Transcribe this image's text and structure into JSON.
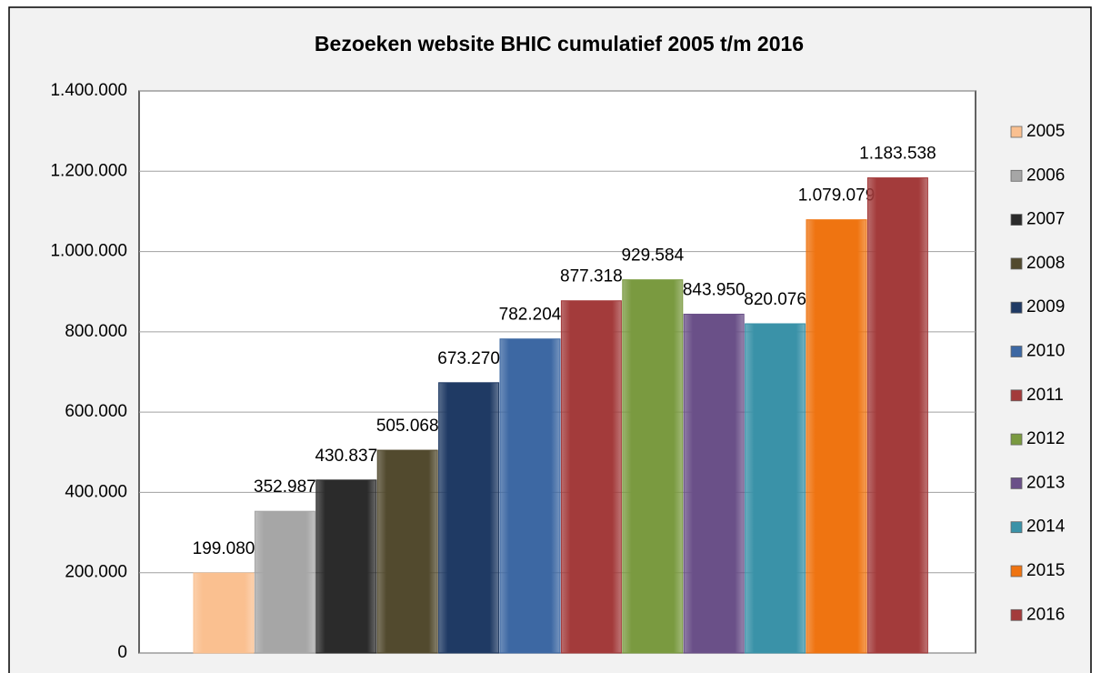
{
  "chart_data": {
    "type": "bar",
    "title": "Bezoeken website BHIC cumulatief 2005 t/m 2016",
    "series": [
      {
        "name": "2005",
        "color": "#fac090",
        "values": [
          199080
        ],
        "value_labels": [
          "199.080"
        ]
      },
      {
        "name": "2006",
        "color": "#a6a6a6",
        "values": [
          352987
        ],
        "value_labels": [
          "352.987"
        ]
      },
      {
        "name": "2007",
        "color": "#2b2b2b",
        "values": [
          430837
        ],
        "value_labels": [
          "430.837"
        ]
      },
      {
        "name": "2008",
        "color": "#524a2e",
        "values": [
          505068
        ],
        "value_labels": [
          "505.068"
        ]
      },
      {
        "name": "2009",
        "color": "#1f3a64",
        "values": [
          673270
        ],
        "value_labels": [
          "673.270"
        ]
      },
      {
        "name": "2010",
        "color": "#3d68a3",
        "values": [
          782204
        ],
        "value_labels": [
          "782.204"
        ]
      },
      {
        "name": "2011",
        "color": "#a33b3b",
        "values": [
          877318
        ],
        "value_labels": [
          "877.318"
        ]
      },
      {
        "name": "2012",
        "color": "#7a9a40",
        "values": [
          929584
        ],
        "value_labels": [
          "929.584"
        ]
      },
      {
        "name": "2013",
        "color": "#6a5088",
        "values": [
          843950
        ],
        "value_labels": [
          "843.950"
        ]
      },
      {
        "name": "2014",
        "color": "#3a92a8",
        "values": [
          820076
        ],
        "value_labels": [
          "820.076"
        ]
      },
      {
        "name": "2015",
        "color": "#ef7411",
        "values": [
          1079079
        ],
        "value_labels": [
          "1.079.079"
        ]
      },
      {
        "name": "2016",
        "color": "#a33b3b",
        "values": [
          1183538
        ],
        "value_labels": [
          "1.183.538"
        ]
      }
    ],
    "ylim": [
      0,
      1400000
    ],
    "yticks": [
      0,
      {
        "value": 200000,
        "label": "200.000"
      },
      {
        "value": 400000,
        "label": "400.000"
      },
      {
        "value": 600000,
        "label": "600.000"
      },
      {
        "value": 800000,
        "label": "800.000"
      },
      {
        "value": 1000000,
        "label": "1.000.000"
      },
      {
        "value": 1200000,
        "label": "1.200.000"
      },
      {
        "value": 1400000,
        "label": "1.400.000"
      }
    ],
    "grid": true,
    "legend": "right"
  }
}
